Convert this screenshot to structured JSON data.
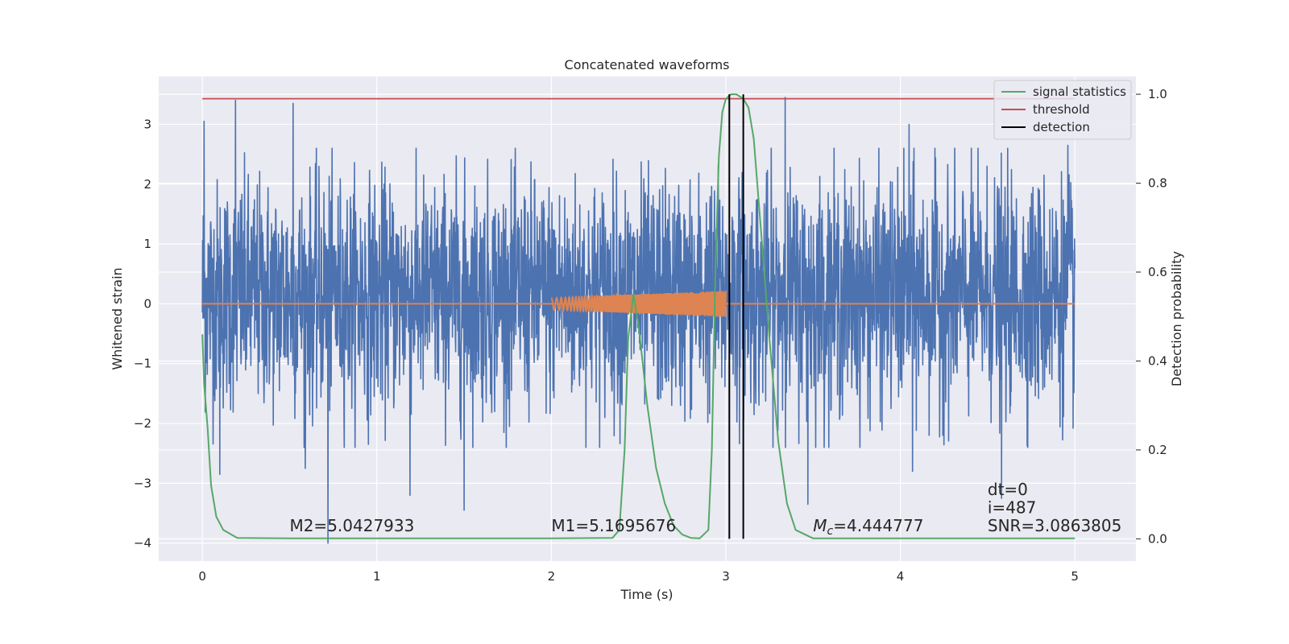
{
  "chart_data": {
    "type": "line",
    "title": "Concatenated waveforms",
    "xlabel": "Time (s)",
    "ylabel": "Whitened strain",
    "ylabel_right": "Detection probability",
    "xlim": [
      -0.25,
      5.35
    ],
    "ylim": [
      -4.3,
      3.8
    ],
    "ylim_right": [
      -0.05,
      1.04
    ],
    "x_ticks": [
      0,
      1,
      2,
      3,
      4,
      5
    ],
    "y_ticks": [
      -4,
      -3,
      -2,
      -1,
      0,
      1,
      2,
      3
    ],
    "y_ticks_right": [
      0.0,
      0.2,
      0.4,
      0.6,
      0.8,
      1.0
    ],
    "y_tick_labels_right": [
      "0.0",
      "0.2",
      "0.4",
      "0.6",
      "0.8",
      "1.0"
    ],
    "grid": true,
    "legend_position": "top-right",
    "legend": [
      {
        "label": "signal statistics",
        "color": "#55a868"
      },
      {
        "label": "threshold",
        "color": "#c44e52"
      },
      {
        "label": "detection",
        "color": "#000000"
      }
    ],
    "strain_noise": {
      "color": "#4c72b0",
      "x_range": [
        0,
        5
      ],
      "typical_band": [
        -1.0,
        1.3
      ],
      "spikes": [
        {
          "x": 0.01,
          "y": 3.05
        },
        {
          "x": 0.19,
          "y": 3.4
        },
        {
          "x": 0.52,
          "y": 3.35
        },
        {
          "x": 1.5,
          "y": 3.0
        },
        {
          "x": 3.34,
          "y": 3.45
        },
        {
          "x": 4.05,
          "y": 3.0
        },
        {
          "x": 4.96,
          "y": 2.65
        },
        {
          "x": 0.72,
          "y": -4.0
        },
        {
          "x": 1.5,
          "y": -3.45
        },
        {
          "x": 1.19,
          "y": -3.2
        },
        {
          "x": 4.58,
          "y": -3.25
        },
        {
          "x": 4.07,
          "y": -2.8
        },
        {
          "x": 0.1,
          "y": -2.85
        },
        {
          "x": 0.59,
          "y": -2.75
        },
        {
          "x": 3.47,
          "y": -3.35
        }
      ]
    },
    "template_chirp": {
      "color": "#dd8452",
      "x_range": [
        2.0,
        3.0
      ],
      "amplitude_start": 0.1,
      "amplitude_end": 0.22
    },
    "signal_statistics": {
      "color": "#55a868",
      "x": [
        0,
        0.01,
        0.03,
        0.05,
        0.08,
        0.12,
        0.2,
        0.5,
        1.0,
        2.0,
        2.35,
        2.39,
        2.42,
        2.44,
        2.47,
        2.5,
        2.55,
        2.6,
        2.65,
        2.7,
        2.75,
        2.8,
        2.85,
        2.9,
        2.92,
        2.94,
        2.96,
        2.98,
        3.0,
        3.03,
        3.06,
        3.1,
        3.13,
        3.16,
        3.2,
        3.25,
        3.3,
        3.35,
        3.4,
        3.5,
        4.0,
        5.0
      ],
      "y": [
        0.46,
        0.35,
        0.25,
        0.12,
        0.05,
        0.02,
        0.002,
        0.001,
        0.001,
        0.001,
        0.002,
        0.02,
        0.2,
        0.45,
        0.55,
        0.48,
        0.3,
        0.16,
        0.08,
        0.03,
        0.01,
        0.002,
        0.001,
        0.02,
        0.2,
        0.6,
        0.86,
        0.96,
        0.99,
        1.0,
        1.0,
        0.99,
        0.97,
        0.9,
        0.7,
        0.45,
        0.22,
        0.08,
        0.02,
        0.001,
        0.001,
        0.001
      ]
    },
    "threshold": {
      "value": 0.99,
      "color": "#c44e52",
      "x_range": [
        0,
        5
      ]
    },
    "detections": {
      "color": "#000000",
      "x": [
        3.02,
        3.1
      ],
      "y_range": [
        0.0,
        1.0
      ]
    },
    "annotations": [
      {
        "text": "M2=5.0427933",
        "x": 0.5,
        "y": -3.8
      },
      {
        "text": "M1=5.1695676",
        "x": 2.0,
        "y": -3.8
      },
      {
        "text_prefix": "M",
        "text_sub": "c",
        "text_rest": "=4.444777",
        "x": 3.5,
        "y": -3.8
      },
      {
        "text": "dt=0",
        "x": 4.5,
        "y": -3.2
      },
      {
        "text": "i=487",
        "x": 4.5,
        "y": -3.5
      },
      {
        "text": "SNR=3.0863805",
        "x": 4.5,
        "y": -3.8
      }
    ]
  }
}
